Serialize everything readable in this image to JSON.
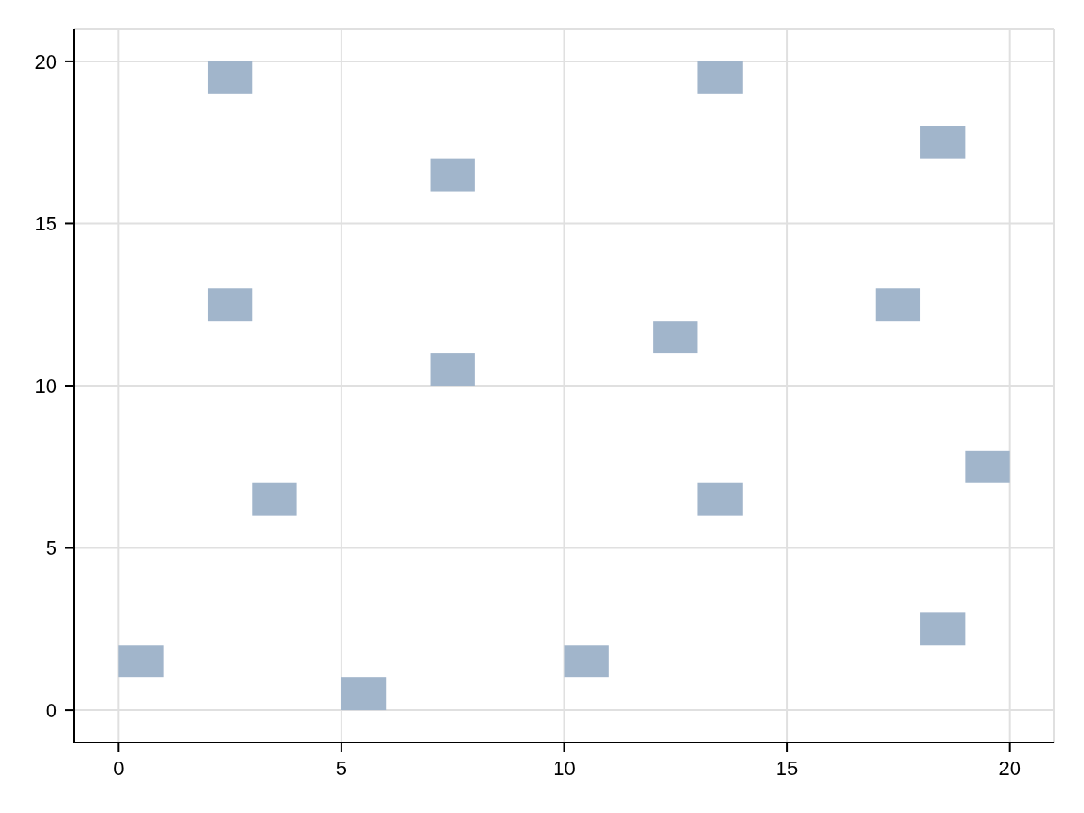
{
  "chart_data": {
    "type": "bar",
    "series": [
      {
        "color": "#a1b5cb",
        "x": [
          0.5,
          2.5,
          3.5,
          5.5,
          7.5,
          10.5,
          12.5,
          13.5,
          17.5,
          18.5,
          19.5
        ],
        "base": [
          1,
          19,
          6,
          0,
          16,
          1,
          11,
          19,
          12,
          17,
          7
        ],
        "values": [
          1,
          1,
          1,
          1,
          1,
          1,
          1,
          1,
          1,
          1,
          1
        ]
      },
      {
        "color": "#a1b5cb",
        "x": [
          2.5,
          7.5,
          13.5,
          18.5
        ],
        "base": [
          12,
          10,
          6,
          2
        ],
        "values": [
          1,
          1,
          1,
          1
        ]
      }
    ],
    "xlim": [
      -1,
      21
    ],
    "ylim": [
      -1,
      21
    ],
    "xticks": [
      0,
      5,
      10,
      15,
      20
    ],
    "yticks": [
      0,
      5,
      10,
      15,
      20
    ],
    "grid": true
  }
}
